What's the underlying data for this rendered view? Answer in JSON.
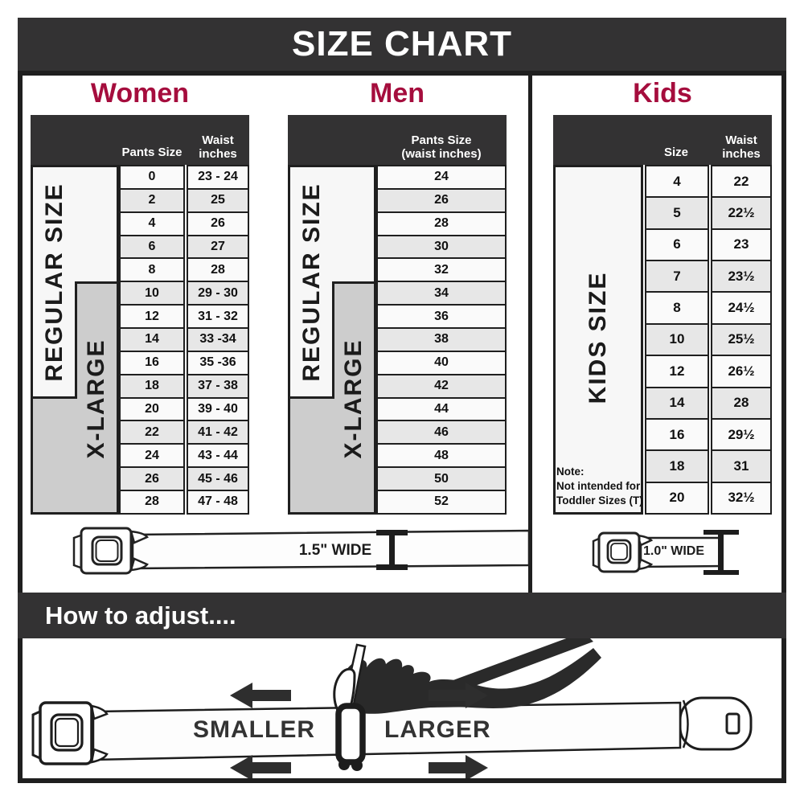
{
  "title": "SIZE CHART",
  "colors": {
    "band_dark": "#333233",
    "heading_red": "#A50D3D",
    "row_light": "#FAFAFA",
    "row_alt": "#E7E7E7",
    "rail_gray": "#CDCDCD",
    "border": "#1F1F1F"
  },
  "sections": {
    "women": {
      "heading": "Women",
      "col1_header": "Pants Size",
      "col2_header_line1": "Waist",
      "col2_header_line2": "inches",
      "regular_label": "REGULAR SIZE",
      "xlarge_label": "X-LARGE",
      "rows": [
        [
          "0",
          "23 - 24"
        ],
        [
          "2",
          "25"
        ],
        [
          "4",
          "26"
        ],
        [
          "6",
          "27"
        ],
        [
          "8",
          "28"
        ],
        [
          "10",
          "29 - 30"
        ],
        [
          "12",
          "31 - 32"
        ],
        [
          "14",
          "33 -34"
        ],
        [
          "16",
          "35 -36"
        ],
        [
          "18",
          "37 - 38"
        ],
        [
          "20",
          "39 - 40"
        ],
        [
          "22",
          "41 - 42"
        ],
        [
          "24",
          "43 - 44"
        ],
        [
          "26",
          "45 - 46"
        ],
        [
          "28",
          "47 - 48"
        ]
      ]
    },
    "men": {
      "heading": "Men",
      "col_header_line1": "Pants Size",
      "col_header_line2": "(waist inches)",
      "regular_label": "REGULAR SIZE",
      "xlarge_label": "X-LARGE",
      "rows": [
        "24",
        "26",
        "28",
        "30",
        "32",
        "34",
        "36",
        "38",
        "40",
        "42",
        "44",
        "46",
        "48",
        "50",
        "52"
      ]
    },
    "kids": {
      "heading": "Kids",
      "col1_header": "Size",
      "col2_header_line1": "Waist",
      "col2_header_line2": "inches",
      "side_label": "KIDS SIZE",
      "note_line1": "Note:",
      "note_line2": "Not intended for",
      "note_line3": "Toddler Sizes (T)",
      "rows": [
        [
          "4",
          "22"
        ],
        [
          "5",
          "22½"
        ],
        [
          "6",
          "23"
        ],
        [
          "7",
          "23½"
        ],
        [
          "8",
          "24½"
        ],
        [
          "10",
          "25½"
        ],
        [
          "12",
          "26½"
        ],
        [
          "14",
          "28"
        ],
        [
          "16",
          "29½"
        ],
        [
          "18",
          "31"
        ],
        [
          "20",
          "32½"
        ]
      ]
    }
  },
  "belts": {
    "adult_width_label": "1.5\" WIDE",
    "kids_width_label": "1.0\" WIDE"
  },
  "adjust": {
    "heading": "How to adjust....",
    "smaller_label": "SMALLER",
    "larger_label": "LARGER"
  },
  "chart_data": [
    {
      "type": "table",
      "title": "Women",
      "columns": [
        "Pants Size",
        "Waist inches"
      ],
      "row_groups": {
        "REGULAR SIZE": [
          "0",
          "2",
          "4",
          "6",
          "8",
          "10",
          "12",
          "14",
          "16",
          "18"
        ],
        "X-LARGE": [
          "10",
          "12",
          "14",
          "16",
          "18",
          "20",
          "22",
          "24",
          "26",
          "28"
        ]
      },
      "rows": [
        [
          "0",
          "23 - 24"
        ],
        [
          "2",
          "25"
        ],
        [
          "4",
          "26"
        ],
        [
          "6",
          "27"
        ],
        [
          "8",
          "28"
        ],
        [
          "10",
          "29 - 30"
        ],
        [
          "12",
          "31 - 32"
        ],
        [
          "14",
          "33 -34"
        ],
        [
          "16",
          "35 -36"
        ],
        [
          "18",
          "37 - 38"
        ],
        [
          "20",
          "39 - 40"
        ],
        [
          "22",
          "41 - 42"
        ],
        [
          "24",
          "43 - 44"
        ],
        [
          "26",
          "45 - 46"
        ],
        [
          "28",
          "47 - 48"
        ]
      ]
    },
    {
      "type": "table",
      "title": "Men",
      "columns": [
        "Pants Size (waist inches)"
      ],
      "row_groups": {
        "REGULAR SIZE": [
          "24",
          "26",
          "28",
          "30",
          "32",
          "34",
          "36",
          "38",
          "40",
          "42"
        ],
        "X-LARGE": [
          "34",
          "36",
          "38",
          "40",
          "42",
          "44",
          "46",
          "48",
          "50",
          "52"
        ]
      },
      "rows": [
        [
          "24"
        ],
        [
          "26"
        ],
        [
          "28"
        ],
        [
          "30"
        ],
        [
          "32"
        ],
        [
          "34"
        ],
        [
          "36"
        ],
        [
          "38"
        ],
        [
          "40"
        ],
        [
          "42"
        ],
        [
          "44"
        ],
        [
          "46"
        ],
        [
          "48"
        ],
        [
          "50"
        ],
        [
          "52"
        ]
      ]
    },
    {
      "type": "table",
      "title": "Kids",
      "columns": [
        "Size",
        "Waist inches"
      ],
      "note": "Note: Not intended for Toddler Sizes (T)",
      "rows": [
        [
          "4",
          "22"
        ],
        [
          "5",
          "22½"
        ],
        [
          "6",
          "23"
        ],
        [
          "7",
          "23½"
        ],
        [
          "8",
          "24½"
        ],
        [
          "10",
          "25½"
        ],
        [
          "12",
          "26½"
        ],
        [
          "14",
          "28"
        ],
        [
          "16",
          "29½"
        ],
        [
          "18",
          "31"
        ],
        [
          "20",
          "32½"
        ]
      ]
    }
  ]
}
